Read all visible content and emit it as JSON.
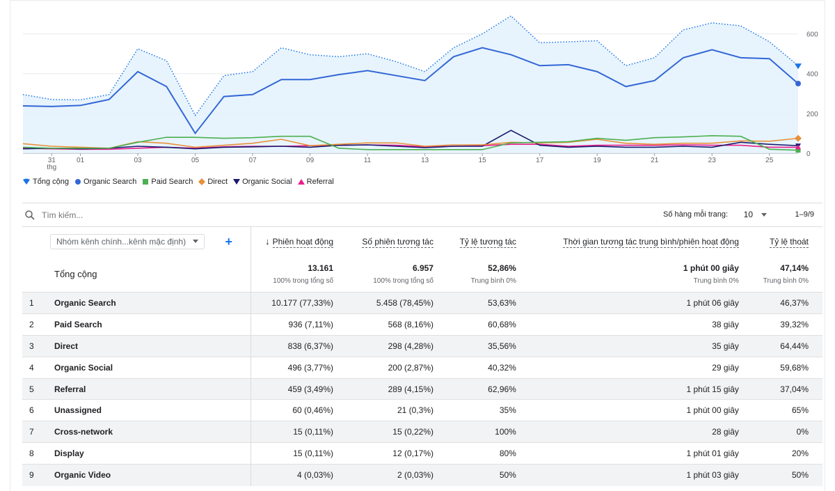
{
  "chart_data": {
    "type": "line",
    "x": [
      "30",
      "31",
      "01",
      "02",
      "03",
      "04",
      "05",
      "06",
      "07",
      "08",
      "09",
      "10",
      "11",
      "12",
      "13",
      "14",
      "15",
      "16",
      "17",
      "18",
      "19",
      "20",
      "21",
      "22",
      "23",
      "24",
      "25",
      "26"
    ],
    "x_tick_labels": [
      "31",
      "01",
      "03",
      "05",
      "07",
      "09",
      "11",
      "13",
      "15",
      "17",
      "19",
      "21",
      "23",
      "25"
    ],
    "x_tick_sublabel": "thg",
    "ylim": [
      0,
      700
    ],
    "y_ticks": [
      "600",
      "400",
      "200",
      "0"
    ],
    "series": [
      {
        "name": "Tổng cộng",
        "color": "#1a73e8",
        "style": "dotted-area",
        "values": [
          295,
          270,
          268,
          295,
          525,
          465,
          190,
          390,
          410,
          530,
          495,
          485,
          500,
          460,
          410,
          530,
          600,
          690,
          555,
          560,
          565,
          440,
          480,
          620,
          655,
          640,
          560,
          440
        ]
      },
      {
        "name": "Organic Search",
        "color": "#3367d6",
        "style": "line",
        "values": [
          238,
          235,
          240,
          270,
          410,
          335,
          100,
          285,
          295,
          370,
          370,
          395,
          415,
          390,
          365,
          485,
          530,
          495,
          440,
          445,
          410,
          335,
          365,
          480,
          520,
          480,
          475,
          350
        ]
      },
      {
        "name": "Paid Search",
        "color": "#4caf50",
        "style": "line",
        "values": [
          30,
          25,
          25,
          25,
          55,
          80,
          80,
          75,
          78,
          85,
          85,
          25,
          18,
          18,
          18,
          18,
          18,
          52,
          55,
          58,
          75,
          65,
          78,
          82,
          88,
          85,
          20,
          15
        ]
      },
      {
        "name": "Direct",
        "color": "#e8903a",
        "style": "line",
        "values": [
          48,
          35,
          30,
          25,
          58,
          50,
          30,
          40,
          50,
          70,
          38,
          45,
          52,
          52,
          35,
          42,
          42,
          55,
          52,
          55,
          70,
          50,
          45,
          50,
          50,
          62,
          60,
          75
        ]
      },
      {
        "name": "Organic Social",
        "color": "#1a1a6e",
        "style": "line",
        "values": [
          22,
          25,
          22,
          25,
          35,
          30,
          22,
          30,
          32,
          35,
          30,
          40,
          42,
          35,
          28,
          35,
          35,
          115,
          40,
          30,
          35,
          30,
          30,
          35,
          30,
          55,
          45,
          38
        ]
      },
      {
        "name": "Referral",
        "color": "#e91e8c",
        "style": "line",
        "values": [
          25,
          22,
          20,
          20,
          25,
          30,
          25,
          32,
          35,
          35,
          38,
          40,
          42,
          40,
          32,
          35,
          38,
          45,
          45,
          35,
          40,
          40,
          40,
          42,
          40,
          40,
          30,
          30
        ]
      }
    ]
  },
  "search": {
    "placeholder": "Tìm kiếm..."
  },
  "pagination": {
    "rows_label": "Số hàng mỗi trang:",
    "rows_value": "10",
    "range": "1–9/9"
  },
  "table": {
    "dimension_select": "Nhóm kênh chính...kênh mặc định)",
    "add_label": "+",
    "headers": [
      "Phiên hoạt động",
      "Số phiên tương tác",
      "Tỷ lệ tương tác",
      "Thời gian tương tác trung bình/phiên hoạt động",
      "Tỷ lệ thoát"
    ],
    "totals": {
      "label": "Tổng cộng",
      "values": [
        "13.161",
        "6.957",
        "52,86%",
        "1 phút 00 giây",
        "47,14%"
      ],
      "subs": [
        "100% trong tổng số",
        "100% trong tổng số",
        "Trung bình 0%",
        "Trung bình 0%",
        "Trung bình 0%"
      ]
    },
    "rows": [
      {
        "idx": "1",
        "name": "Organic Search",
        "sessions": "10.177 (77,33%)",
        "engaged": "5.458 (78,45%)",
        "rate": "53,63%",
        "time": "1 phút 06 giây",
        "bounce": "46,37%"
      },
      {
        "idx": "2",
        "name": "Paid Search",
        "sessions": "936 (7,11%)",
        "engaged": "568 (8,16%)",
        "rate": "60,68%",
        "time": "38 giây",
        "bounce": "39,32%"
      },
      {
        "idx": "3",
        "name": "Direct",
        "sessions": "838 (6,37%)",
        "engaged": "298 (4,28%)",
        "rate": "35,56%",
        "time": "35 giây",
        "bounce": "64,44%"
      },
      {
        "idx": "4",
        "name": "Organic Social",
        "sessions": "496 (3,77%)",
        "engaged": "200 (2,87%)",
        "rate": "40,32%",
        "time": "29 giây",
        "bounce": "59,68%"
      },
      {
        "idx": "5",
        "name": "Referral",
        "sessions": "459 (3,49%)",
        "engaged": "289 (4,15%)",
        "rate": "62,96%",
        "time": "1 phút 15 giây",
        "bounce": "37,04%"
      },
      {
        "idx": "6",
        "name": "Unassigned",
        "sessions": "60 (0,46%)",
        "engaged": "21 (0,3%)",
        "rate": "35%",
        "time": "1 phút 00 giây",
        "bounce": "65%"
      },
      {
        "idx": "7",
        "name": "Cross-network",
        "sessions": "15 (0,11%)",
        "engaged": "15 (0,22%)",
        "rate": "100%",
        "time": "28 giây",
        "bounce": "0%"
      },
      {
        "idx": "8",
        "name": "Display",
        "sessions": "15 (0,11%)",
        "engaged": "12 (0,17%)",
        "rate": "80%",
        "time": "1 phút 01 giây",
        "bounce": "20%"
      },
      {
        "idx": "9",
        "name": "Organic Video",
        "sessions": "4 (0,03%)",
        "engaged": "2 (0,03%)",
        "rate": "50%",
        "time": "1 phút 03 giây",
        "bounce": "50%"
      }
    ]
  }
}
